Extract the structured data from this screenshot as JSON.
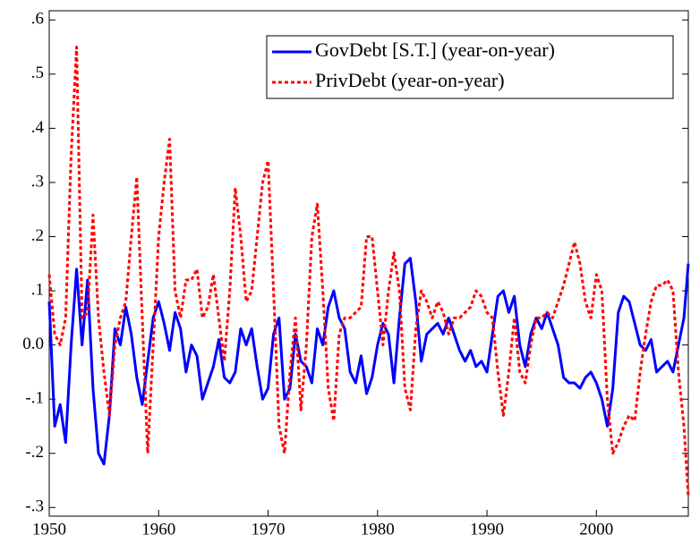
{
  "chart_data": {
    "type": "line",
    "x": [
      1950,
      1950.5,
      1951,
      1951.5,
      1952,
      1952.5,
      1953,
      1953.5,
      1954,
      1954.5,
      1955,
      1955.5,
      1956,
      1956.5,
      1957,
      1957.5,
      1958,
      1958.5,
      1959,
      1959.5,
      1960,
      1960.5,
      1961,
      1961.5,
      1962,
      1962.5,
      1963,
      1963.5,
      1964,
      1964.5,
      1965,
      1965.5,
      1966,
      1966.5,
      1967,
      1967.5,
      1968,
      1968.5,
      1969,
      1969.5,
      1970,
      1970.5,
      1971,
      1971.5,
      1972,
      1972.5,
      1973,
      1973.5,
      1974,
      1974.5,
      1975,
      1975.5,
      1976,
      1976.5,
      1977,
      1977.5,
      1978,
      1978.5,
      1979,
      1979.5,
      1980,
      1980.5,
      1981,
      1981.5,
      1982,
      1982.5,
      1983,
      1983.5,
      1984,
      1984.5,
      1985,
      1985.5,
      1986,
      1986.5,
      1987,
      1987.5,
      1988,
      1988.5,
      1989,
      1989.5,
      1990,
      1990.5,
      1991,
      1991.5,
      1992,
      1992.5,
      1993,
      1993.5,
      1994,
      1994.5,
      1995,
      1995.5,
      1996,
      1996.5,
      1997,
      1997.5,
      1998,
      1998.5,
      1999,
      1999.5,
      2000,
      2000.5,
      2001,
      2001.5,
      2002,
      2002.5,
      2003,
      2003.5,
      2004,
      2004.5,
      2005,
      2005.5,
      2006,
      2006.5,
      2007,
      2007.5,
      2008,
      2008.4
    ],
    "series": [
      {
        "name": "GovDebt [S.T.] (year-on-year)",
        "color": "#0000ff",
        "style": "solid",
        "values": [
          0.08,
          -0.15,
          -0.11,
          -0.18,
          0.0,
          0.14,
          0.0,
          0.12,
          -0.08,
          -0.2,
          -0.22,
          -0.13,
          0.03,
          0.0,
          0.07,
          0.02,
          -0.06,
          -0.11,
          -0.03,
          0.05,
          0.08,
          0.04,
          -0.01,
          0.06,
          0.03,
          -0.05,
          0.0,
          -0.02,
          -0.1,
          -0.07,
          -0.04,
          0.01,
          -0.06,
          -0.07,
          -0.05,
          0.03,
          0.0,
          0.03,
          -0.04,
          -0.1,
          -0.08,
          0.02,
          0.05,
          -0.1,
          -0.08,
          0.02,
          -0.03,
          -0.04,
          -0.07,
          0.03,
          0.0,
          0.07,
          0.1,
          0.05,
          0.03,
          -0.05,
          -0.07,
          -0.02,
          -0.09,
          -0.06,
          0.0,
          0.04,
          0.02,
          -0.07,
          0.05,
          0.15,
          0.16,
          0.08,
          -0.03,
          0.02,
          0.03,
          0.04,
          0.02,
          0.05,
          0.02,
          -0.01,
          -0.03,
          -0.01,
          -0.04,
          -0.03,
          -0.05,
          0.02,
          0.09,
          0.1,
          0.06,
          0.09,
          0.0,
          -0.04,
          0.02,
          0.05,
          0.03,
          0.06,
          0.03,
          0.0,
          -0.06,
          -0.07,
          -0.07,
          -0.08,
          -0.06,
          -0.05,
          -0.07,
          -0.1,
          -0.15,
          -0.08,
          0.06,
          0.09,
          0.08,
          0.04,
          0.0,
          -0.01,
          0.01,
          -0.05,
          -0.04,
          -0.03,
          -0.05,
          0.0,
          0.05,
          0.15
        ]
      },
      {
        "name": "PrivDebt (year-on-year)",
        "color": "#ff0000",
        "style": "dashed",
        "values": [
          0.13,
          0.02,
          0.0,
          0.05,
          0.35,
          0.55,
          0.05,
          0.06,
          0.24,
          0.05,
          -0.05,
          -0.13,
          0.0,
          0.05,
          0.08,
          0.2,
          0.31,
          0.05,
          -0.2,
          0.0,
          0.2,
          0.3,
          0.38,
          0.1,
          0.05,
          0.12,
          0.12,
          0.14,
          0.05,
          0.07,
          0.13,
          0.05,
          -0.03,
          0.1,
          0.29,
          0.2,
          0.08,
          0.1,
          0.2,
          0.3,
          0.34,
          0.1,
          -0.15,
          -0.2,
          -0.05,
          0.05,
          -0.12,
          0.0,
          0.2,
          0.26,
          0.1,
          -0.08,
          -0.14,
          0.02,
          0.05,
          0.05,
          0.06,
          0.07,
          0.2,
          0.2,
          0.1,
          0.0,
          0.1,
          0.17,
          0.1,
          -0.08,
          -0.12,
          0.03,
          0.1,
          0.08,
          0.05,
          0.08,
          0.06,
          0.02,
          0.05,
          0.05,
          0.06,
          0.07,
          0.1,
          0.09,
          0.06,
          0.05,
          -0.05,
          -0.13,
          -0.05,
          0.05,
          -0.05,
          -0.07,
          0.0,
          0.05,
          0.05,
          0.06,
          0.05,
          0.08,
          0.11,
          0.15,
          0.19,
          0.15,
          0.08,
          0.05,
          0.13,
          0.1,
          -0.1,
          -0.2,
          -0.18,
          -0.15,
          -0.13,
          -0.14,
          -0.05,
          0.02,
          0.08,
          0.11,
          0.11,
          0.12,
          0.1,
          -0.05,
          -0.15,
          -0.28
        ]
      }
    ],
    "xlim": [
      1950,
      2008.4
    ],
    "xticks": [
      1950,
      1960,
      1970,
      1980,
      1990,
      2000
    ],
    "ylim": [
      -0.316,
      0.617
    ],
    "yticks": [
      {
        "value": -0.3,
        "label": "-.3"
      },
      {
        "value": -0.2,
        "label": "-.2"
      },
      {
        "value": -0.1,
        "label": "-.1"
      },
      {
        "value": 0,
        "label": "0.0"
      },
      {
        "value": 0.1,
        "label": ".1"
      },
      {
        "value": 0.2,
        "label": ".2"
      },
      {
        "value": 0.3,
        "label": ".3"
      },
      {
        "value": 0.4,
        "label": ".4"
      },
      {
        "value": 0.5,
        "label": ".5"
      },
      {
        "value": 0.6,
        "label": ".6"
      }
    ],
    "legend": "upper right"
  }
}
